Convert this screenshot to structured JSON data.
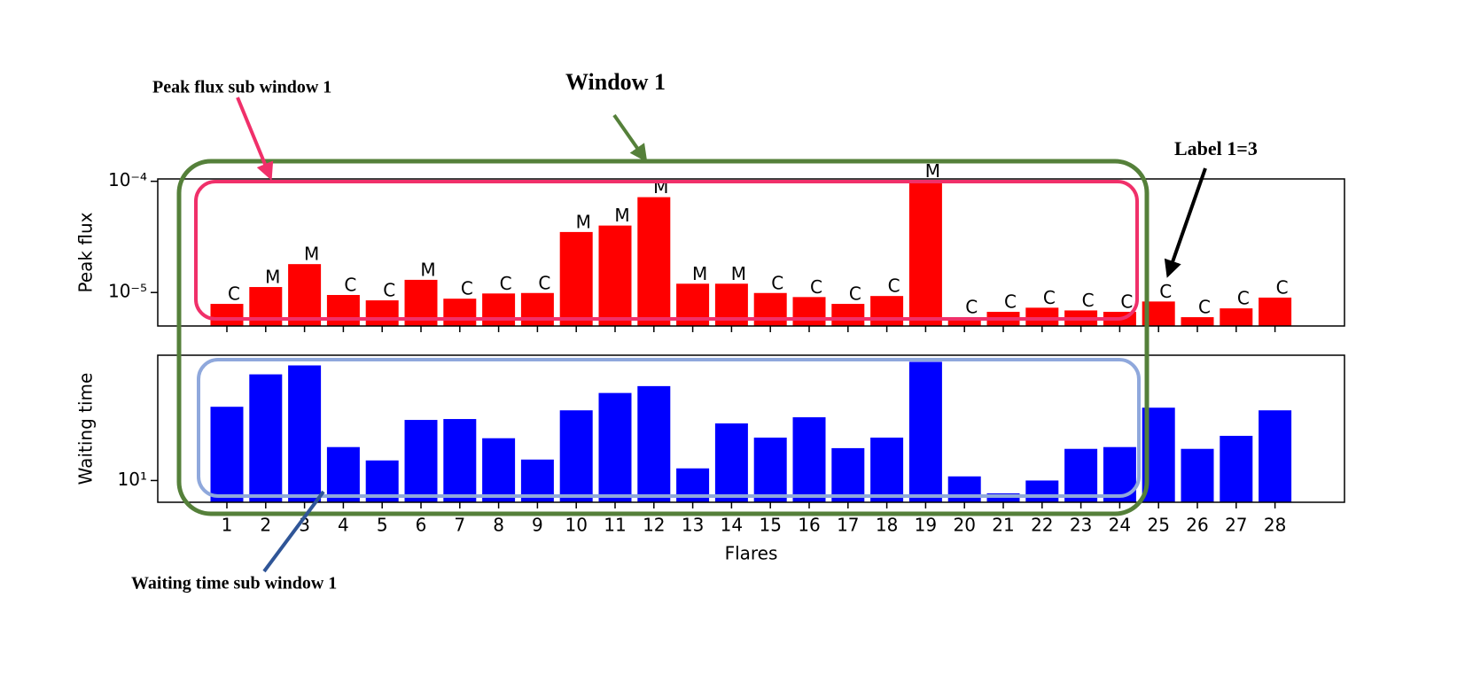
{
  "chart_data": [
    {
      "type": "bar",
      "ylabel": "Peak flux",
      "log": true,
      "color": "#ff0000",
      "values": [
        7.9e-06,
        1.12e-05,
        1.8e-05,
        9.5e-06,
        8.5e-06,
        1.3e-05,
        8.8e-06,
        9.8e-06,
        9.9e-06,
        3.5e-05,
        4e-05,
        7.2e-05,
        1.2e-05,
        1.2e-05,
        9.9e-06,
        9.1e-06,
        7.9e-06,
        9.3e-06,
        0.0001,
        6e-06,
        6.7e-06,
        7.3e-06,
        6.9e-06,
        6.7e-06,
        8.3e-06,
        6e-06,
        7.2e-06,
        9e-06
      ],
      "class_labels": [
        "C",
        "M",
        "M",
        "C",
        "C",
        "M",
        "C",
        "C",
        "C",
        "M",
        "M",
        "M",
        "M",
        "M",
        "C",
        "C",
        "C",
        "C",
        "M",
        "C",
        "C",
        "C",
        "C",
        "C",
        "C",
        "C",
        "C",
        "C"
      ],
      "ylim": [
        5e-06,
        0.000105
      ],
      "yticks": [
        {
          "value": 0.0001,
          "label": "10⁻⁴"
        },
        {
          "value": 1e-05,
          "label": "10⁻⁵"
        }
      ]
    },
    {
      "type": "bar",
      "ylabel": "Waiting time",
      "xlabel": "Flares",
      "log": true,
      "color": "#0000ff",
      "categories": [
        "1",
        "2",
        "3",
        "4",
        "5",
        "6",
        "7",
        "8",
        "9",
        "10",
        "11",
        "12",
        "13",
        "14",
        "15",
        "16",
        "17",
        "18",
        "19",
        "20",
        "21",
        "22",
        "23",
        "24",
        "25",
        "26",
        "27",
        "28"
      ],
      "values": [
        33.5,
        57,
        66,
        17.3,
        13.9,
        27,
        27.4,
        20,
        14.1,
        31.6,
        42,
        47,
        12.2,
        25.5,
        20.2,
        28.2,
        17,
        20.2,
        70,
        10.7,
        8.1,
        10,
        16.8,
        17.3,
        33,
        16.8,
        20.8,
        31.6
      ],
      "ylim": [
        7,
        78
      ],
      "yticks": [
        {
          "value": 10,
          "label": "10¹"
        }
      ]
    }
  ],
  "annotations": {
    "window": "Window 1",
    "peak_sub": "Peak flux sub window 1",
    "label": "Label 1=3",
    "wait_sub": "Waiting time sub window 1"
  }
}
